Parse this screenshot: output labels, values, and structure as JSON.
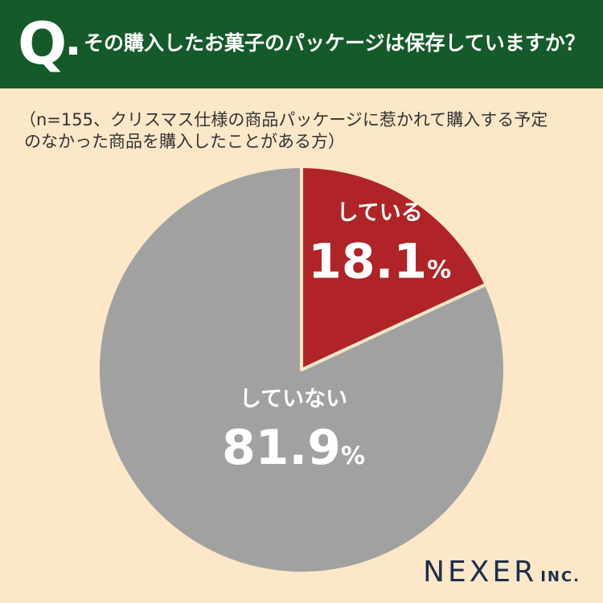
{
  "header": {
    "q_letter": "Q",
    "question": "その購入したお菓子のパッケージは保存していますか？"
  },
  "note": {
    "line1": "（n=155、クリスマス仕様の商品パッケージに惹かれて購入する予定",
    "line2": "のなかった商品を購入したことがある方）"
  },
  "chart_data": {
    "type": "pie",
    "title": "その購入したお菓子のパッケージは保存していますか？",
    "categories": [
      "している",
      "していない"
    ],
    "values": [
      18.1,
      81.9
    ],
    "value_labels": [
      "18.1",
      "81.9"
    ],
    "unit": "%",
    "colors": [
      "#b02428",
      "#a1a1a1"
    ],
    "start_angle": "top (12 o'clock), clockwise",
    "legend": "none (labels inside slices)"
  },
  "logo": {
    "main": "NEXER",
    "sub": "INC."
  }
}
